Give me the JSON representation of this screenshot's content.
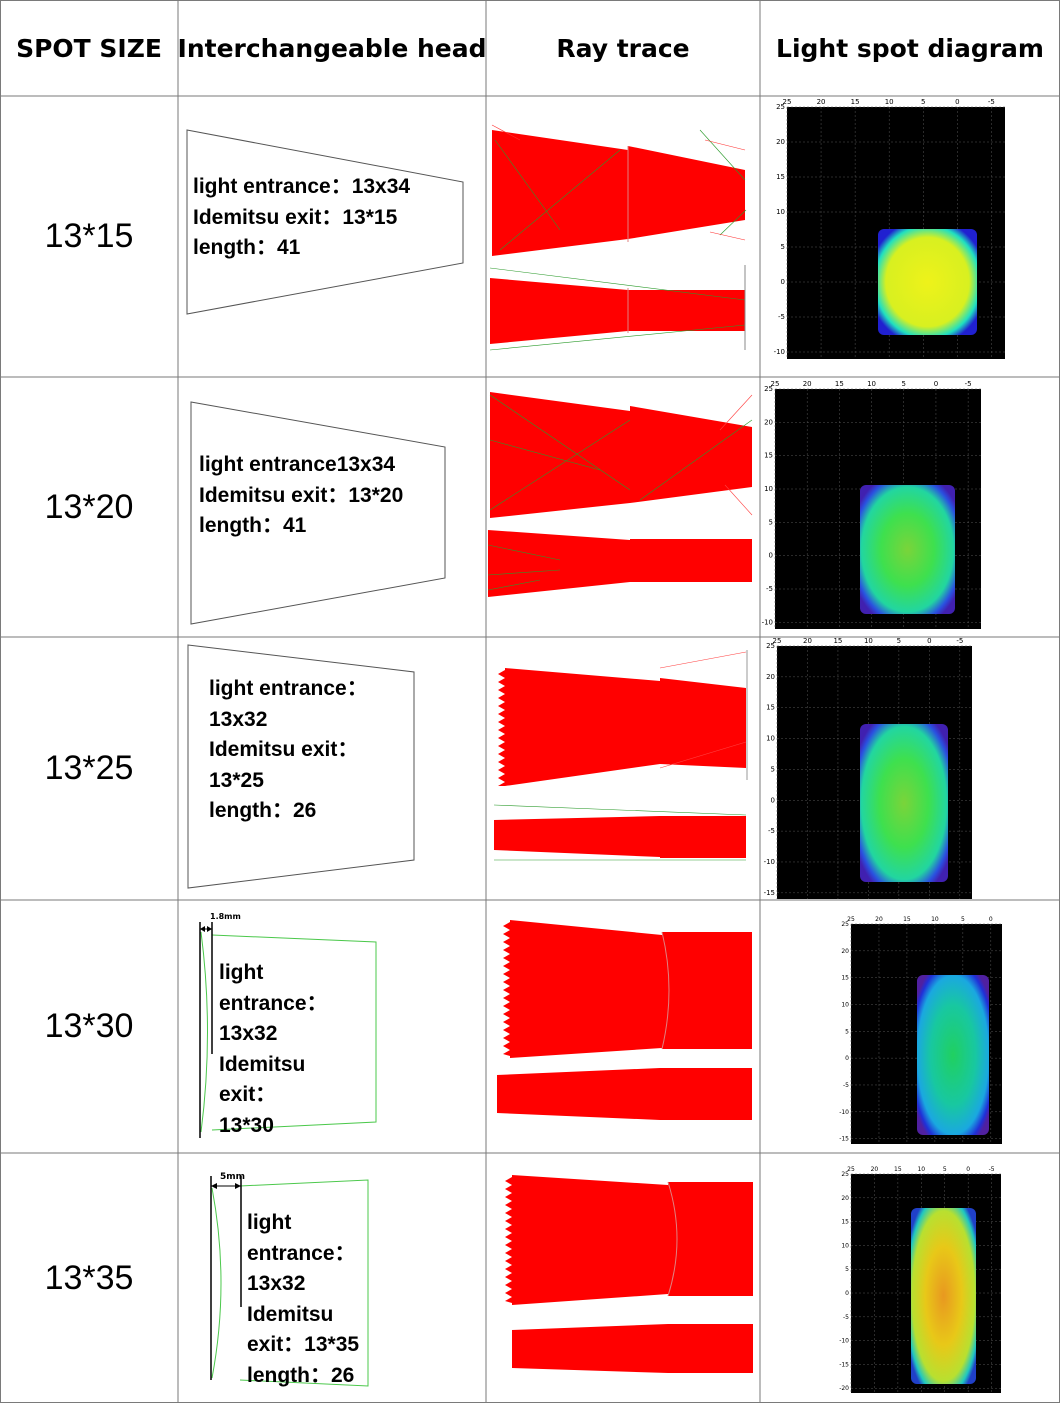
{
  "header": {
    "spot_size": "SPOT SIZE",
    "interchangeable_head": "Interchangeable head",
    "ray_trace": "Ray trace",
    "light_spot_diagram": "Light spot diagram"
  },
  "rows": [
    {
      "spot": "13*15",
      "desc": [
        "light entrance：13x34",
        "Idemitsu exit：13*15",
        "length：41"
      ],
      "spot_color": "yellow"
    },
    {
      "spot": "13*20",
      "desc": [
        "light entrance13x34",
        "Idemitsu exit：13*20",
        "length：41"
      ],
      "spot_color": "green"
    },
    {
      "spot": "13*25",
      "desc": [
        "light entrance：",
        "13x32",
        "Idemitsu exit：",
        "13*25",
        "length：26"
      ],
      "spot_color": "green"
    },
    {
      "spot": "13*30",
      "desc": [
        "light",
        "entrance：",
        "13x32",
        "Idemitsu",
        "exit：",
        "13*30"
      ],
      "dim_label": "1.8mm",
      "spot_color": "green-blue"
    },
    {
      "spot": "13*35",
      "desc": [
        "light",
        "entrance：",
        "13x32",
        "Idemitsu",
        "exit：13*35",
        "length：26"
      ],
      "dim_label": "5mm",
      "spot_color": "orange"
    }
  ],
  "spot_axis": {
    "x_ticks": [
      "25",
      "20",
      "15",
      "10",
      "5",
      "0",
      "-5"
    ],
    "y_ticks_row1": [
      "25",
      "20",
      "15",
      "10",
      "5",
      "0",
      "-5",
      "-10"
    ],
    "y_ticks_row2": [
      "25",
      "20",
      "15",
      "10",
      "5",
      "0",
      "-5",
      "-10"
    ],
    "y_ticks_row3": [
      "25",
      "20",
      "15",
      "10",
      "5",
      "0",
      "-5",
      "-10",
      "-15"
    ],
    "x_ticks_row4": [
      "25",
      "20",
      "15",
      "10",
      "5",
      "0"
    ],
    "y_ticks_row4": [
      "25",
      "20",
      "15",
      "10",
      "5",
      "0",
      "-5",
      "-10",
      "-15"
    ],
    "x_ticks_row5": [
      "25",
      "20",
      "15",
      "10",
      "5",
      "0",
      "-5"
    ],
    "y_ticks_row5": [
      "25",
      "20",
      "15",
      "10",
      "5",
      "0",
      "-5",
      "-10",
      "-15",
      "-20"
    ]
  },
  "colors": {
    "ray_red": "#ff0000",
    "ray_green": "#19b219",
    "spot_bg": "#000000",
    "spot_yellow": "#e6f216",
    "spot_green": "#2adf55",
    "spot_blue": "#1c1cd8",
    "spot_orange": "#e8c010",
    "grid_line": "#808080"
  }
}
